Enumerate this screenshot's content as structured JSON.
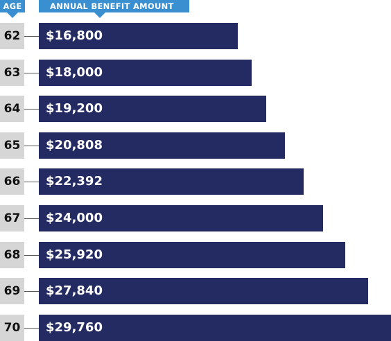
{
  "chart_data": {
    "type": "bar",
    "orientation": "horizontal",
    "category_header": "AGE",
    "value_header": "ANNUAL BENEFIT AMOUNT",
    "categories": [
      "62",
      "63",
      "64",
      "65",
      "66",
      "67",
      "68",
      "69",
      "70"
    ],
    "values": [
      16800,
      18000,
      19200,
      20808,
      22392,
      24000,
      25920,
      27840,
      29760
    ],
    "value_labels": [
      "$16,800",
      "$18,000",
      "$19,200",
      "$20,808",
      "$22,392",
      "$24,000",
      "$25,920",
      "$27,840",
      "$29,760"
    ],
    "colors": {
      "bar": "#242b63",
      "header": "#3a8fd0",
      "age_box": "#d6d6d6"
    }
  }
}
